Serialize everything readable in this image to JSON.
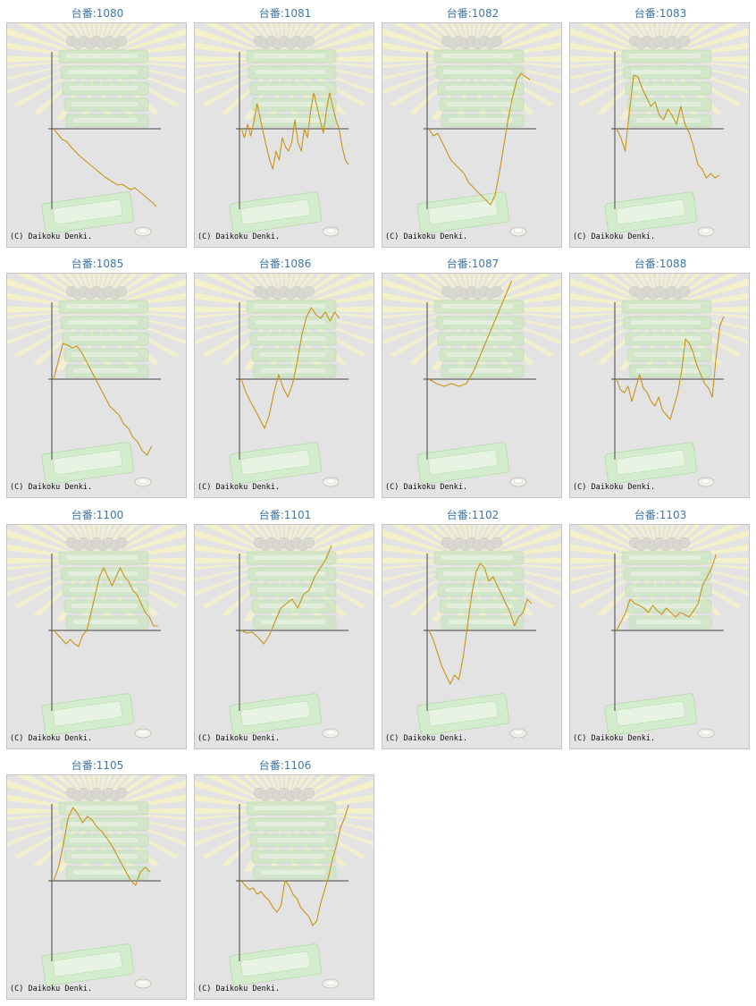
{
  "label_prefix": "台番:",
  "copyright": "(C) Daikoku Denki.",
  "colors": {
    "line": "#c89414",
    "axis": "#444444",
    "title": "#3f78a8",
    "background": "#e3e3e3"
  },
  "chart_data": [
    {
      "type": "line",
      "title": "台番:1080",
      "y": [
        0,
        -6,
        -12,
        -14,
        -20,
        -25,
        -30,
        -34,
        -38,
        -42,
        -46,
        -50,
        -54,
        -57,
        -60,
        -63,
        -62,
        -65,
        -68,
        -66,
        -70,
        -74,
        -78,
        -82,
        -87
      ]
    },
    {
      "type": "line",
      "title": "台番:1081",
      "y": [
        0,
        -10,
        5,
        -8,
        8,
        28,
        12,
        -5,
        -20,
        -35,
        -45,
        -25,
        -35,
        -10,
        -20,
        -25,
        -15,
        10,
        -15,
        -25,
        0,
        -10,
        20,
        40,
        25,
        10,
        -5,
        20,
        40,
        25,
        10,
        0,
        -20,
        -35,
        -40
      ]
    },
    {
      "type": "line",
      "title": "台番:1082",
      "y": [
        0,
        -8,
        -5,
        -15,
        -25,
        -35,
        -40,
        -45,
        -50,
        -60,
        -65,
        -70,
        -75,
        -80,
        -85,
        -75,
        -50,
        -20,
        10,
        35,
        55,
        62,
        58,
        55
      ]
    },
    {
      "type": "line",
      "title": "台番:1083",
      "y": [
        0,
        -10,
        -25,
        20,
        60,
        58,
        45,
        35,
        25,
        30,
        15,
        10,
        22,
        15,
        5,
        25,
        5,
        -5,
        -20,
        -40,
        -45,
        -55,
        -50,
        -55,
        -52
      ]
    },
    {
      "type": "line",
      "title": "台番:1085",
      "y": [
        0,
        20,
        40,
        38,
        35,
        37,
        30,
        20,
        10,
        0,
        -10,
        -20,
        -30,
        -35,
        -40,
        -50,
        -55,
        -65,
        -70,
        -80,
        -85,
        -75
      ]
    },
    {
      "type": "line",
      "title": "台番:1086",
      "y": [
        0,
        -15,
        -25,
        -35,
        -45,
        -55,
        -40,
        -15,
        5,
        -10,
        -20,
        -5,
        20,
        50,
        70,
        80,
        72,
        68,
        75,
        65,
        75,
        68
      ]
    },
    {
      "type": "line",
      "title": "台番:1087",
      "y": [
        0,
        -5,
        -8,
        -5,
        -8,
        -5,
        10,
        30,
        50,
        70,
        90,
        110
      ]
    },
    {
      "type": "line",
      "title": "台番:1088",
      "y": [
        0,
        -12,
        -15,
        -8,
        -25,
        -10,
        5,
        -10,
        -15,
        -25,
        -30,
        -20,
        -35,
        -40,
        -45,
        -30,
        -15,
        10,
        45,
        40,
        30,
        15,
        5,
        -5,
        -10,
        -20,
        25,
        60,
        70
      ]
    },
    {
      "type": "line",
      "title": "台番:1100",
      "y": [
        0,
        -5,
        -10,
        -15,
        -10,
        -15,
        -18,
        -5,
        0,
        20,
        40,
        60,
        70,
        60,
        50,
        60,
        70,
        60,
        55,
        45,
        40,
        30,
        20,
        15,
        5,
        5
      ]
    },
    {
      "type": "line",
      "title": "台番:1101",
      "y": [
        0,
        -3,
        -2,
        -8,
        -15,
        -5,
        10,
        25,
        30,
        35,
        25,
        40,
        45,
        60,
        70,
        80,
        95
      ]
    },
    {
      "type": "line",
      "title": "台番:1102",
      "y": [
        0,
        -10,
        -25,
        -40,
        -50,
        -60,
        -50,
        -55,
        -30,
        5,
        40,
        65,
        75,
        70,
        55,
        60,
        50,
        40,
        30,
        20,
        5,
        15,
        20,
        35,
        30
      ]
    },
    {
      "type": "line",
      "title": "台番:1103",
      "y": [
        0,
        10,
        20,
        35,
        30,
        28,
        25,
        20,
        28,
        22,
        18,
        25,
        20,
        15,
        20,
        18,
        15,
        22,
        30,
        50,
        60,
        70,
        85
      ]
    },
    {
      "type": "line",
      "title": "台番:1105",
      "y": [
        0,
        15,
        40,
        70,
        82,
        75,
        65,
        72,
        68,
        60,
        55,
        48,
        40,
        30,
        20,
        10,
        0,
        -5,
        10,
        15,
        10
      ]
    },
    {
      "type": "line",
      "title": "台番:1106",
      "y": [
        0,
        -5,
        -10,
        -8,
        -15,
        -12,
        -18,
        -22,
        -30,
        -35,
        -28,
        0,
        -5,
        -15,
        -20,
        -30,
        -35,
        -40,
        -50,
        -45,
        -25,
        -10,
        5,
        25,
        40,
        60,
        70,
        85
      ]
    }
  ]
}
